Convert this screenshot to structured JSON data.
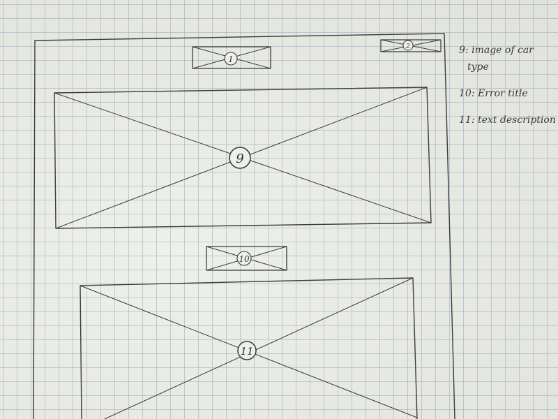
{
  "components": [
    {
      "id": "top-label",
      "number": "1"
    },
    {
      "id": "top-right-label",
      "number": "2"
    },
    {
      "id": "hero-image",
      "number": "9"
    },
    {
      "id": "error-title",
      "number": "10"
    },
    {
      "id": "text-description",
      "number": "11"
    }
  ],
  "legend": [
    {
      "number": "9",
      "text": "image of car",
      "text_cont": "type"
    },
    {
      "number": "10",
      "text": "Error title"
    },
    {
      "number": "11",
      "text": "text description"
    }
  ]
}
